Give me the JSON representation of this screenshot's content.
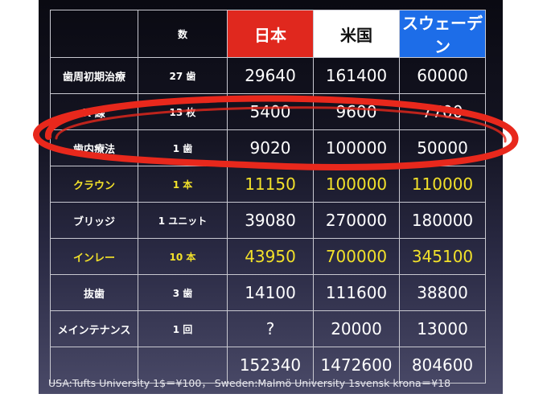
{
  "table": {
    "header": {
      "label_col": "",
      "count_col": "数",
      "japan": "日本",
      "usa": "米国",
      "sweden": "スウェーデン"
    },
    "rows": [
      {
        "name": "歯周初期治療",
        "count": "27 歯",
        "japan": "29640",
        "usa": "161400",
        "sweden": "60000",
        "highlight": false
      },
      {
        "name": "X 線",
        "count": "13 枚",
        "japan": "5400",
        "usa": "9600",
        "sweden": "7700",
        "highlight": false
      },
      {
        "name": "歯内療法",
        "count": "1 歯",
        "japan": "9020",
        "usa": "100000",
        "sweden": "50000",
        "highlight": false
      },
      {
        "name": "クラウン",
        "count": "1 本",
        "japan": "11150",
        "usa": "100000",
        "sweden": "110000",
        "highlight": true
      },
      {
        "name": "ブリッジ",
        "count": "1 ユニット",
        "japan": "39080",
        "usa": "270000",
        "sweden": "180000",
        "highlight": false
      },
      {
        "name": "インレー",
        "count": "10 本",
        "japan": "43950",
        "usa": "700000",
        "sweden": "345100",
        "highlight": true
      },
      {
        "name": "抜歯",
        "count": "3 歯",
        "japan": "14100",
        "usa": "111600",
        "sweden": "38800",
        "highlight": false
      },
      {
        "name": "メインテナンス",
        "count": "1 回",
        "japan": "?",
        "usa": "20000",
        "sweden": "13000",
        "highlight": false
      },
      {
        "name": "",
        "count": "",
        "japan": "152340",
        "usa": "1472600",
        "sweden": "804600",
        "highlight": false
      }
    ]
  },
  "colors": {
    "japan_header": "#e0281e",
    "usa_header": "#ffffff",
    "sweden_header": "#1d6de8",
    "highlight_text": "#f2e12a",
    "annotation_ring": "#e8281c"
  },
  "footnote": "USA:Tufts University 1$＝¥100， Sweden:Malmö University 1svensk krona＝¥18"
}
